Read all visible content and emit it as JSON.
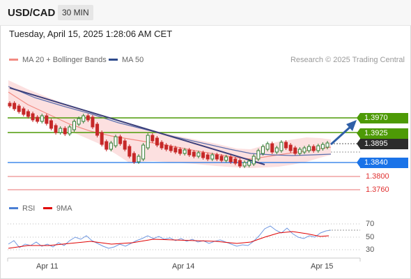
{
  "header": {
    "symbol": "USD/CAD",
    "timeframe": "30 MIN"
  },
  "datetime": "Tuesday, April 15, 2025 1:28:06 AM CET",
  "legend": {
    "ma20_bb": {
      "label": "MA 20 + Bollinger Bands",
      "color": "#f28b82"
    },
    "ma50": {
      "label": "MA 50",
      "color": "#2e4a8c"
    },
    "credit": "Research © 2025 Trading Central"
  },
  "levels": [
    {
      "label": "1.3970",
      "price": 1.397,
      "kind": "resistance",
      "color": "#4d9a06"
    },
    {
      "label": "1.3925",
      "price": 1.3925,
      "kind": "resistance",
      "color": "#4d9a06"
    },
    {
      "label": "1.3895",
      "price": 1.3895,
      "kind": "last",
      "color": "#2c2c2c"
    },
    {
      "label": "1.3840",
      "price": 1.384,
      "kind": "pivot",
      "color": "#1a73e8"
    },
    {
      "label": "1.3800",
      "price": 1.38,
      "kind": "support",
      "color": "#e03030"
    },
    {
      "label": "1.3760",
      "price": 1.376,
      "kind": "support",
      "color": "#e03030"
    }
  ],
  "rsi_legend": {
    "rsi": "RSI",
    "rsi_color": "#4a7fd4",
    "ma": "9MA",
    "ma_color": "#e00000"
  },
  "rsi_axis": [
    "70",
    "50",
    "30"
  ],
  "x_axis": [
    "Apr 11",
    "Apr 14",
    "Apr 15"
  ],
  "colors": {
    "up": "#2e7d32",
    "down": "#c62828",
    "band": "#fbd5d5"
  }
}
